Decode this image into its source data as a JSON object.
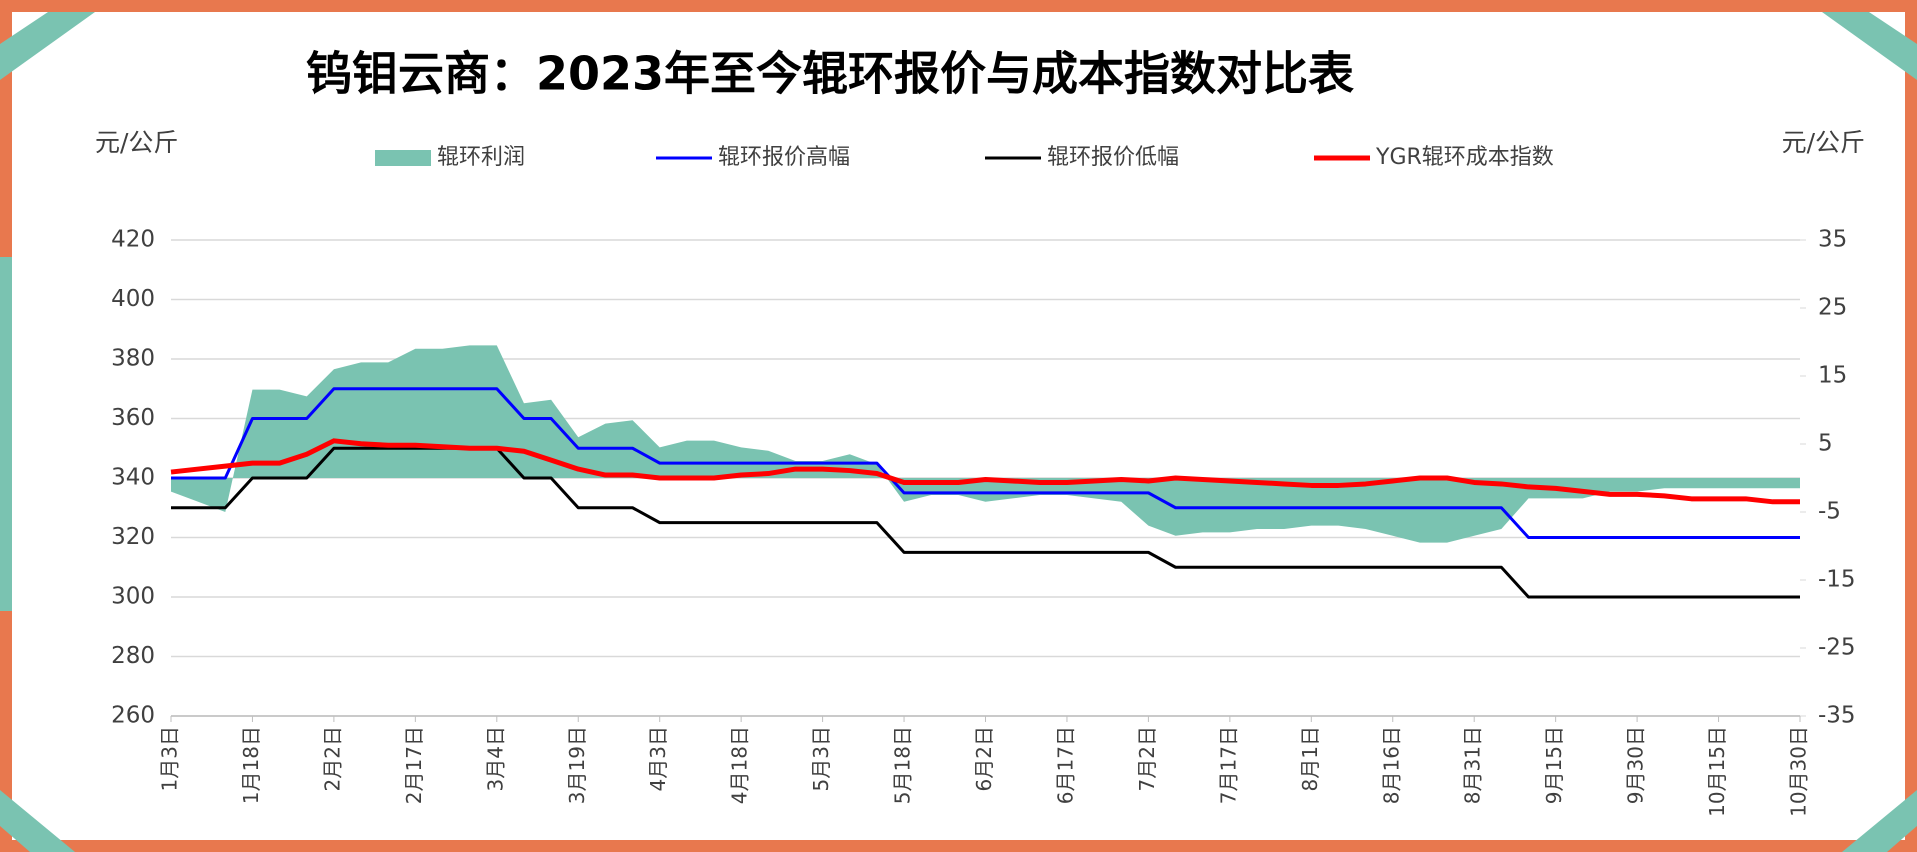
{
  "chart_data": {
    "type": "combo",
    "title": "钨钼云商：2023年至今辊环报价与成本指数对比表",
    "ylabel": "元/公斤",
    "y2label": "元/公斤",
    "categories": [
      "1月3日",
      null,
      null,
      "1月18日",
      null,
      null,
      "2月2日",
      null,
      null,
      "2月17日",
      null,
      null,
      "3月4日",
      null,
      null,
      "3月19日",
      null,
      null,
      "4月3日",
      null,
      null,
      "4月18日",
      null,
      null,
      "5月3日",
      null,
      null,
      "5月18日",
      null,
      null,
      "6月2日",
      null,
      null,
      "6月17日",
      null,
      null,
      "7月2日",
      null,
      null,
      "7月17日",
      null,
      null,
      "8月1日",
      null,
      null,
      "8月16日",
      null,
      null,
      "8月31日",
      null,
      null,
      "9月15日",
      null,
      null,
      "9月30日",
      null,
      null,
      "10月15日",
      null,
      null,
      "10月30日"
    ],
    "series": [
      {
        "name": "辊环利润",
        "type": "area",
        "axis": "y2",
        "color": "#7ac3b1",
        "values": [
          -2,
          -3.5,
          -5,
          13,
          13,
          12,
          16,
          17,
          17,
          19,
          19,
          19.5,
          19.5,
          11,
          11.5,
          6,
          8,
          8.5,
          4.5,
          5.5,
          5.5,
          4.5,
          4,
          2.5,
          2.5,
          3.5,
          2,
          -3.5,
          -2.5,
          -2.5,
          -3.5,
          -3,
          -2.5,
          -2.5,
          -3,
          -3.5,
          -7,
          -8.5,
          -8,
          -8,
          -7.5,
          -7.5,
          -7,
          -7,
          -7.5,
          -8.5,
          -9.5,
          -9.5,
          -8.5,
          -7.5,
          -3,
          -3,
          -3,
          -2,
          -2,
          -1.5,
          -1.5,
          -1.5,
          -1.5,
          -1.5,
          -1.5
        ]
      },
      {
        "name": "辊环报价高幅",
        "type": "line",
        "color": "#0000ff",
        "width": 3,
        "values": [
          340,
          340,
          340,
          360,
          360,
          360,
          370,
          370,
          370,
          370,
          370,
          370,
          370,
          360,
          360,
          350,
          350,
          350,
          345,
          345,
          345,
          345,
          345,
          345,
          345,
          345,
          345,
          335,
          335,
          335,
          335,
          335,
          335,
          335,
          335,
          335,
          335,
          330,
          330,
          330,
          330,
          330,
          330,
          330,
          330,
          330,
          330,
          330,
          330,
          330,
          320,
          320,
          320,
          320,
          320,
          320,
          320,
          320,
          320,
          320,
          320
        ]
      },
      {
        "name": "辊环报价低幅",
        "type": "line",
        "color": "#000000",
        "width": 3,
        "values": [
          330,
          330,
          330,
          340,
          340,
          340,
          350,
          350,
          350,
          350,
          350,
          350,
          350,
          340,
          340,
          330,
          330,
          330,
          325,
          325,
          325,
          325,
          325,
          325,
          325,
          325,
          325,
          315,
          315,
          315,
          315,
          315,
          315,
          315,
          315,
          315,
          315,
          310,
          310,
          310,
          310,
          310,
          310,
          310,
          310,
          310,
          310,
          310,
          310,
          310,
          300,
          300,
          300,
          300,
          300,
          300,
          300,
          300,
          300,
          300,
          300
        ]
      },
      {
        "name": "YGR辊环成本指数",
        "type": "line",
        "color": "#ff0000",
        "width": 5,
        "values": [
          342,
          343,
          344,
          345,
          345,
          348,
          352.5,
          351.5,
          351,
          351,
          350.5,
          350,
          350,
          349,
          346,
          343,
          341,
          341,
          340,
          340,
          340,
          341,
          341.5,
          343,
          343,
          342.5,
          341.5,
          338.5,
          338.5,
          338.5,
          339.5,
          339,
          338.5,
          338.5,
          339,
          339.5,
          339,
          340,
          339.5,
          339,
          338.5,
          338,
          337.5,
          337.5,
          338,
          339,
          340,
          340,
          338.5,
          338,
          337,
          336.5,
          335.5,
          334.5,
          334.5,
          334,
          333,
          333,
          333,
          332,
          332
        ]
      }
    ],
    "ylim": [
      260,
      420
    ],
    "yticks": [
      260,
      280,
      300,
      320,
      340,
      360,
      380,
      400,
      420
    ],
    "y2lim": [
      -35,
      35
    ],
    "y2ticks": [
      -35,
      -25,
      -15,
      -5,
      5,
      15,
      25,
      35
    ],
    "grid": true,
    "legend": "top"
  }
}
